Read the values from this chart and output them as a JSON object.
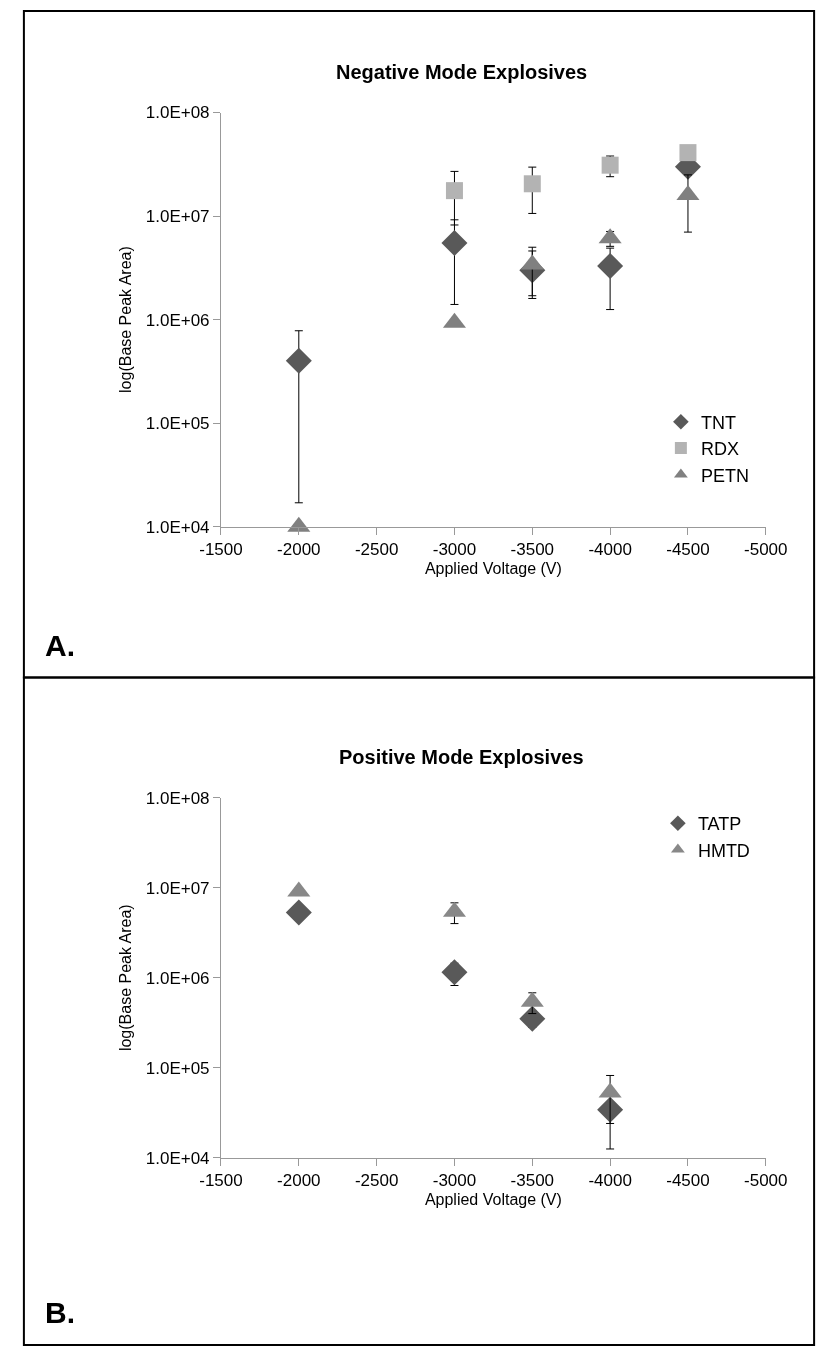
{
  "chart_data": [
    {
      "type": "scatter",
      "title": "Negative Mode Explosives",
      "xlabel": "Applied Voltage (V)",
      "ylabel": "log(Base Peak Area)",
      "annotations": [
        "A."
      ],
      "log": "y",
      "grid": false,
      "legend": "bottom right",
      "x": [
        -2000,
        -3000,
        -3500,
        -4000,
        -4500
      ],
      "xlim": [
        -1500,
        -5000
      ],
      "xticks": [
        -1500,
        -2000,
        -2500,
        -3000,
        -3500,
        -4000,
        -4500,
        -5000
      ],
      "ylim": [
        10000,
        100000000
      ],
      "yticks": [
        {
          "value": 10000,
          "label": "1.0E+04"
        },
        {
          "value": 100000,
          "label": "1.0E+05"
        },
        {
          "value": 1000000,
          "label": "1.0E+06"
        },
        {
          "value": 10000000,
          "label": "1.0E+07"
        },
        {
          "value": 100000000,
          "label": "1.0E+08"
        }
      ],
      "series": [
        {
          "name": "TNT",
          "color": "#595959",
          "marker": "diamond",
          "values": [
            400000,
            5500000,
            3000000,
            3300000,
            30000000
          ],
          "errors": [
            [
              17000,
              780000
            ],
            [
              1400000,
              9200000
            ],
            [
              1700000,
              4600000
            ],
            [
              1250000,
              4900000
            ],
            [
              25000000,
              35000000
            ]
          ]
        },
        {
          "name": "RDX",
          "color": "#b3b3b3",
          "marker": "square",
          "values": [
            null,
            17600000,
            20500000,
            31000000,
            41000000
          ],
          "errors": [
            null,
            [
              8200000,
              27000000
            ],
            [
              10600000,
              29700000
            ],
            [
              24000000,
              38000000
            ],
            null
          ]
        },
        {
          "name": "PETN",
          "color": "#808080",
          "marker": "triangle",
          "values": [
            10000,
            930000,
            3400000,
            6100000,
            16000000
          ],
          "errors": [
            null,
            null,
            [
              1600000,
              5000000
            ],
            [
              5100000,
              7100000
            ],
            [
              7000000,
              25000000
            ]
          ]
        }
      ]
    },
    {
      "type": "scatter",
      "title": "Positive Mode Explosives",
      "xlabel": "Applied Voltage (V)",
      "ylabel": "log(Base Peak Area)",
      "annotations": [
        "B."
      ],
      "log": "y",
      "grid": false,
      "legend": "top right",
      "x": [
        -2000,
        -3000,
        -3500,
        -4000
      ],
      "xlim": [
        -1500,
        -5000
      ],
      "xticks": [
        -1500,
        -2000,
        -2500,
        -3000,
        -3500,
        -4000,
        -4500,
        -5000
      ],
      "ylim": [
        10000,
        100000000
      ],
      "yticks": [
        {
          "value": 10000,
          "label": "1.0E+04"
        },
        {
          "value": 100000,
          "label": "1.0E+05"
        },
        {
          "value": 1000000,
          "label": "1.0E+06"
        },
        {
          "value": 10000000,
          "label": "1.0E+07"
        },
        {
          "value": 100000000,
          "label": "1.0E+08"
        }
      ],
      "series": [
        {
          "name": "TATP",
          "color": "#595959",
          "marker": "diamond",
          "values": [
            5300000,
            1150000,
            350000,
            34000
          ],
          "errors": [
            null,
            [
              820000,
              1450000
            ],
            [
              280000,
              400000
            ],
            [
              12500,
              34000
            ]
          ]
        },
        {
          "name": "HMTD",
          "color": "#888888",
          "marker": "triangle",
          "values": [
            9100000,
            5400000,
            540000,
            53000
          ],
          "errors": [
            [
              8200000,
              10000000
            ],
            [
              4000000,
              6800000
            ],
            [
              400000,
              680000
            ],
            [
              24000,
              82000
            ]
          ]
        }
      ]
    }
  ]
}
